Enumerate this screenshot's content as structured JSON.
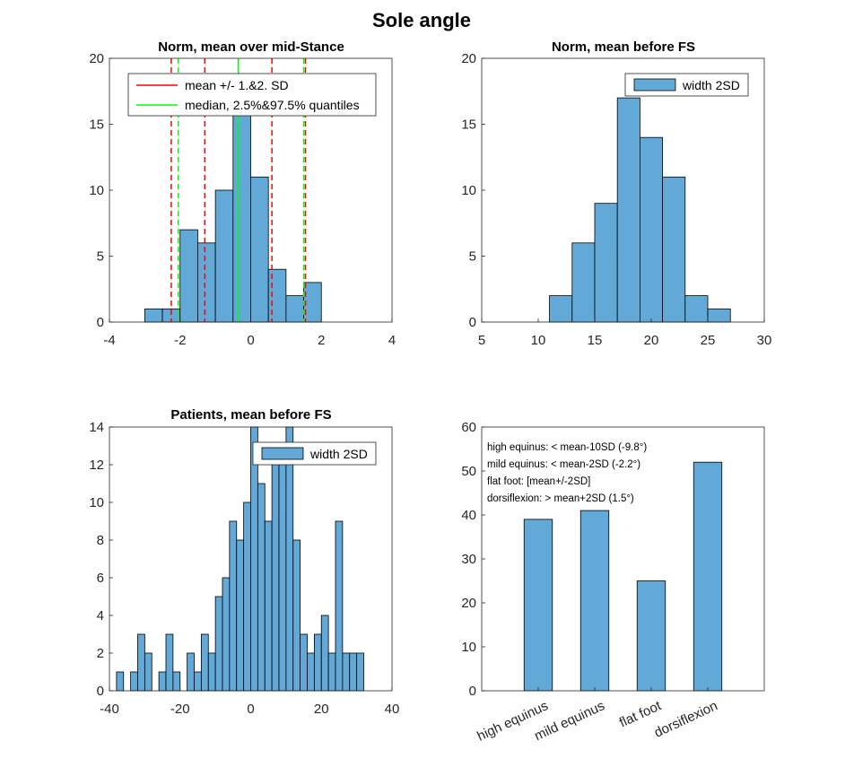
{
  "figure": {
    "title": "Sole angle"
  },
  "colors": {
    "bar": "#62a9d8",
    "edge": "#000000",
    "sd_line": "#ff0000",
    "quantile_line": "#00ff00",
    "axis": "#262626"
  },
  "chart_data": [
    {
      "id": "p1",
      "type": "bar",
      "title": "Norm, mean over mid-Stance",
      "xlim": [
        -4,
        4
      ],
      "ylim": [
        0,
        20
      ],
      "xticks": [
        "-4",
        "-2",
        "0",
        "2",
        "4"
      ],
      "yticks": [
        "0",
        "5",
        "10",
        "15",
        "20"
      ],
      "bin_edges": [
        -3.0,
        -2.5,
        -2.0,
        -1.5,
        -1.0,
        -0.5,
        0.0,
        0.5,
        1.0,
        1.5,
        2.0
      ],
      "counts": [
        1,
        1,
        7,
        6,
        10,
        16,
        11,
        4,
        2,
        3
      ],
      "vlines_sd": [
        -2.25,
        -1.3,
        0.6,
        1.55
      ],
      "vlines_quantile": [
        -2.05,
        -0.35,
        1.5
      ],
      "legend": [
        "mean +/- 1.&2. SD",
        "median, 2.5%&97.5% quantiles"
      ]
    },
    {
      "id": "p2",
      "type": "bar",
      "title": "Norm, mean before FS",
      "xlim": [
        5,
        30
      ],
      "ylim": [
        0,
        20
      ],
      "xticks": [
        "5",
        "10",
        "15",
        "20",
        "25",
        "30"
      ],
      "yticks": [
        "0",
        "5",
        "10",
        "15",
        "20"
      ],
      "bin_edges": [
        11,
        13,
        15,
        17,
        19,
        21,
        23,
        25,
        27
      ],
      "counts": [
        2,
        6,
        9,
        17,
        14,
        11,
        2,
        1
      ],
      "legend": [
        "width 2SD"
      ]
    },
    {
      "id": "p3",
      "type": "bar",
      "title": "Patients, mean before FS",
      "xlim": [
        -40,
        40
      ],
      "ylim": [
        0,
        14
      ],
      "xticks": [
        "-40",
        "-20",
        "0",
        "20",
        "40"
      ],
      "yticks": [
        "0",
        "2",
        "4",
        "6",
        "8",
        "10",
        "12",
        "14"
      ],
      "bin_start": -38,
      "bin_width": 2,
      "counts": [
        1,
        0,
        1,
        3,
        2,
        0,
        1,
        3,
        1,
        0,
        2,
        1,
        3,
        2,
        5,
        6,
        9,
        8,
        10,
        15,
        11,
        9,
        12,
        13,
        14,
        8,
        3,
        2,
        3,
        4,
        2,
        9,
        2,
        2,
        2,
        0,
        0,
        0,
        0,
        0
      ],
      "legend": [
        "width 2SD"
      ]
    },
    {
      "id": "p4",
      "type": "bar",
      "title": "",
      "ylim": [
        0,
        60
      ],
      "yticks": [
        "0",
        "10",
        "20",
        "30",
        "40",
        "50",
        "60"
      ],
      "categories": [
        "high equinus",
        "mild equinus",
        "flat foot",
        "dorsiflexion"
      ],
      "values": [
        39,
        41,
        25,
        52
      ],
      "annotations": [
        "high equinus: < mean-10SD (-9.8°)",
        "mild equinus: < mean-2SD (-2.2°)",
        "flat foot: [mean+/-2SD]",
        "dorsiflexion: > mean+2SD (1.5°)"
      ]
    }
  ]
}
